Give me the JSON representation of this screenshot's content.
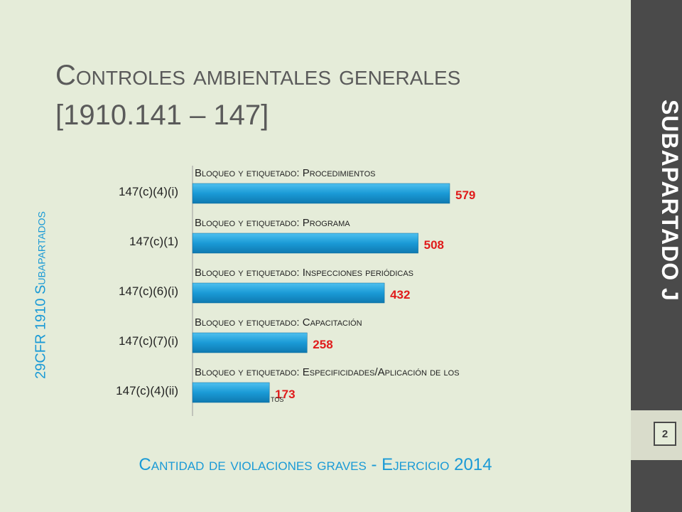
{
  "slide": {
    "title_line1": "Controles ambientales generales",
    "title_line2": "[1910.141 – 147]",
    "side_title": "SUBAPARTADO J",
    "left_label": "29CFR 1910 Subapartados",
    "footer": "Cantidad de violaciones graves - Ejercicio 2014",
    "page_number": "2"
  },
  "colors": {
    "bar": "#1a9ad6",
    "value_label": "#e01b1b",
    "accent": "#1a9ad6",
    "sidebar": "#4a4a4a",
    "background": "#e5ecd9"
  },
  "chart_data": {
    "type": "bar",
    "orientation": "horizontal",
    "categories": [
      "147(c)(4)(i)",
      "147(c)(1)",
      "147(c)(6)(i)",
      "147(c)(7)(i)",
      "147(c)(4)(ii)"
    ],
    "values": [
      579,
      508,
      432,
      258,
      173
    ],
    "annotations": [
      "Bloqueo y etiquetado: Procedimientos",
      "Bloqueo y etiquetado: Programa",
      "Bloqueo y etiquetado: Inspecciones periódicas",
      "Bloqueo y etiquetado: Capacitación",
      "Bloqueo y etiquetado: Especificidades/Aplicación de los"
    ],
    "annotation_overflow_fragment": "tos",
    "xlim": [
      0,
      579
    ],
    "grid": false,
    "legend": "none"
  }
}
